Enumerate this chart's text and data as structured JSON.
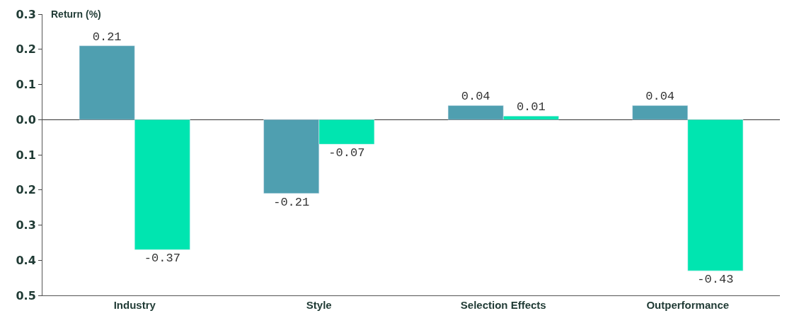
{
  "chart_data": {
    "type": "bar",
    "ylabel": "Return (%)",
    "categories": [
      "Industry",
      "Style",
      "Selection Effects",
      "Outperformance"
    ],
    "series": [
      {
        "color": "#4f9fb0",
        "values": [
          0.21,
          -0.21,
          0.04,
          0.04
        ]
      },
      {
        "color": "#00e5b0",
        "values": [
          -0.37,
          -0.07,
          0.01,
          -0.43
        ]
      }
    ],
    "ylim": [
      -0.5,
      0.3
    ],
    "yticks": [
      0.3,
      0.2,
      0.1,
      {
        "value": 0,
        "label": "0.0"
      },
      {
        "value": -0.1,
        "label": "0.1"
      },
      {
        "value": -0.2,
        "label": "0.2"
      },
      {
        "value": -0.3,
        "label": "0.3"
      },
      {
        "value": -0.4,
        "label": "0.4"
      },
      {
        "value": -0.5,
        "label": "0.5"
      }
    ],
    "data_labels": true
  }
}
